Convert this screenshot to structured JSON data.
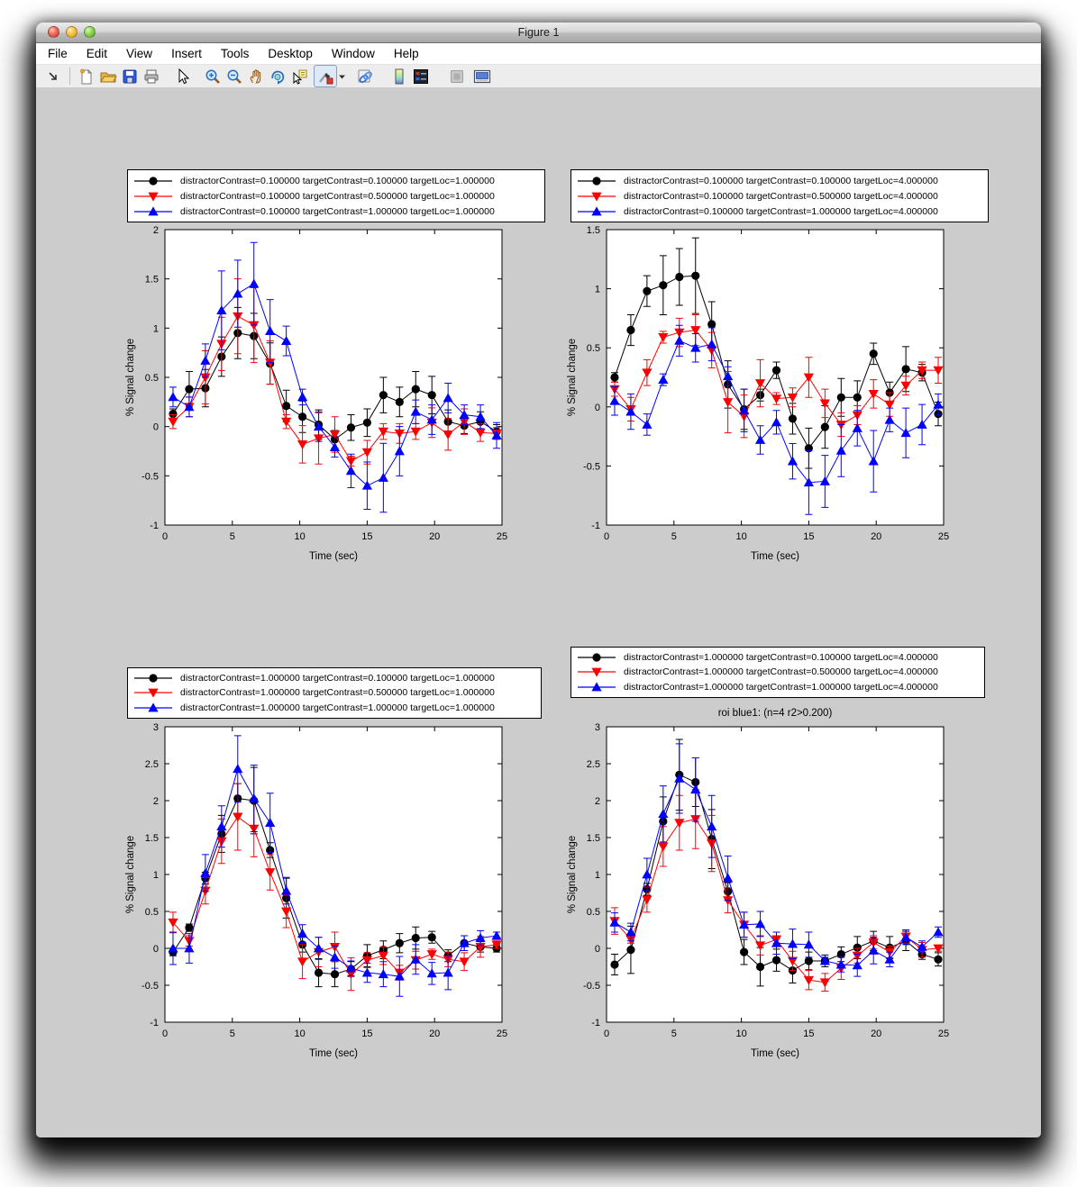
{
  "chrome": {
    "title": "Figure 1",
    "traffic_lights": [
      "close",
      "minimize",
      "zoom"
    ],
    "menu": [
      "File",
      "Edit",
      "View",
      "Insert",
      "Tools",
      "Desktop",
      "Window",
      "Help"
    ],
    "toolbar_icons": [
      "dock-arrow-icon",
      "new-figure-icon",
      "open-file-icon",
      "save-figure-icon",
      "print-icon",
      "edit-plot-pointer-icon",
      "zoom-in-icon",
      "zoom-out-icon",
      "pan-hand-icon",
      "rotate-3d-icon",
      "data-cursor-icon",
      "brush-data-icon",
      "brush-dropdown-icon",
      "link-plot-icon",
      "insert-colorbar-icon",
      "insert-legend-icon",
      "hide-plot-tools-icon",
      "show-plot-tools-icon"
    ]
  },
  "figure": {
    "background_color": "#cccccc",
    "axes_background": "#ffffff",
    "series_colors": [
      "#000000",
      "#ff0000",
      "#0000ff"
    ],
    "series_markers": [
      "circle",
      "triangle-down",
      "triangle-up"
    ]
  },
  "chart_data": [
    {
      "type": "line",
      "title": "",
      "xlabel": "Time (sec)",
      "ylabel": "% Signal change",
      "xlim": [
        0,
        25
      ],
      "ylim": [
        -1,
        2
      ],
      "xticks": [
        0,
        5,
        10,
        15,
        20,
        25
      ],
      "yticks": [
        -1,
        -0.5,
        0,
        0.5,
        1,
        1.5,
        2
      ],
      "legend_position": "above-axes",
      "x": [
        0.6,
        1.8,
        3.0,
        4.2,
        5.4,
        6.6,
        7.8,
        9.0,
        10.2,
        11.4,
        12.6,
        13.8,
        15.0,
        16.2,
        17.4,
        18.6,
        19.8,
        21.0,
        22.2,
        23.4,
        24.6
      ],
      "series": [
        {
          "label": "distractorContrast=0.100000 targetContrast=0.100000 targetLoc=1.000000",
          "color": "#000000",
          "marker": "circle",
          "y": [
            0.13,
            0.38,
            0.39,
            0.71,
            0.95,
            0.92,
            0.64,
            0.21,
            0.1,
            0.02,
            -0.13,
            -0.01,
            0.04,
            0.32,
            0.25,
            0.38,
            0.32,
            0.05,
            0.01,
            0.05,
            -0.05
          ],
          "err": [
            0.05,
            0.18,
            0.19,
            0.2,
            0.26,
            0.23,
            0.21,
            0.16,
            0.16,
            0.15,
            0.09,
            0.13,
            0.14,
            0.18,
            0.15,
            0.18,
            0.19,
            0.12,
            0.08,
            0.1,
            0.07
          ]
        },
        {
          "label": "distractorContrast=0.100000 targetContrast=0.500000 targetLoc=1.000000",
          "color": "#ff0000",
          "marker": "triangle-down",
          "y": [
            0.05,
            0.2,
            0.5,
            0.84,
            1.12,
            1.03,
            0.65,
            0.05,
            -0.18,
            -0.12,
            -0.08,
            -0.35,
            -0.26,
            -0.05,
            -0.07,
            -0.05,
            0.04,
            -0.08,
            0.05,
            -0.06,
            -0.07
          ],
          "err": [
            0.07,
            0.1,
            0.27,
            0.27,
            0.38,
            0.38,
            0.22,
            0.07,
            0.19,
            0.26,
            0.18,
            0.05,
            0.12,
            0.08,
            0.1,
            0.08,
            0.15,
            0.16,
            0.13,
            0.09,
            0.06
          ]
        },
        {
          "label": "distractorContrast=0.100000 targetContrast=1.000000 targetLoc=1.000000",
          "color": "#0000ff",
          "marker": "triangle-up",
          "y": [
            0.3,
            0.2,
            0.67,
            1.18,
            1.35,
            1.45,
            0.97,
            0.87,
            0.3,
            0.0,
            -0.21,
            -0.45,
            -0.6,
            -0.52,
            -0.25,
            0.15,
            0.07,
            0.29,
            0.12,
            0.1,
            -0.09
          ],
          "err": [
            0.1,
            0.1,
            0.17,
            0.4,
            0.34,
            0.42,
            0.32,
            0.15,
            0.08,
            0.15,
            0.1,
            0.17,
            0.24,
            0.35,
            0.25,
            0.12,
            0.15,
            0.15,
            0.1,
            0.12,
            0.13
          ]
        }
      ]
    },
    {
      "type": "line",
      "title": "",
      "xlabel": "Time (sec)",
      "ylabel": "% Signal change",
      "xlim": [
        0,
        25
      ],
      "ylim": [
        -1,
        1.5
      ],
      "xticks": [
        0,
        5,
        10,
        15,
        20,
        25
      ],
      "yticks": [
        -1,
        -0.5,
        0,
        0.5,
        1,
        1.5
      ],
      "legend_position": "above-axes",
      "x": [
        0.6,
        1.8,
        3.0,
        4.2,
        5.4,
        6.6,
        7.8,
        9.0,
        10.2,
        11.4,
        12.6,
        13.8,
        15.0,
        16.2,
        17.4,
        18.6,
        19.8,
        21.0,
        22.2,
        23.4,
        24.6
      ],
      "series": [
        {
          "label": "distractorContrast=0.100000 targetContrast=0.100000 targetLoc=4.000000",
          "color": "#000000",
          "marker": "circle",
          "y": [
            0.25,
            0.65,
            0.98,
            1.03,
            1.1,
            1.11,
            0.7,
            0.19,
            -0.02,
            0.1,
            0.31,
            -0.1,
            -0.35,
            -0.17,
            0.08,
            0.08,
            0.45,
            0.12,
            0.32,
            0.29,
            -0.06
          ],
          "err": [
            0.04,
            0.13,
            0.13,
            0.25,
            0.24,
            0.32,
            0.19,
            0.2,
            0.17,
            0.05,
            0.07,
            0.13,
            0.17,
            0.18,
            0.16,
            0.14,
            0.09,
            0.09,
            0.19,
            0.07,
            0.1
          ]
        },
        {
          "label": "distractorContrast=0.100000 targetContrast=0.500000 targetLoc=4.000000",
          "color": "#ff0000",
          "marker": "triangle-down",
          "y": [
            0.15,
            -0.02,
            0.29,
            0.59,
            0.63,
            0.65,
            0.48,
            0.04,
            -0.08,
            0.2,
            0.07,
            0.08,
            0.25,
            0.03,
            -0.15,
            -0.07,
            0.11,
            0.02,
            0.18,
            0.31,
            0.31
          ],
          "err": [
            0.06,
            0.1,
            0.11,
            0.05,
            0.12,
            0.13,
            0.15,
            0.26,
            0.18,
            0.2,
            0.05,
            0.08,
            0.17,
            0.12,
            0.1,
            0.08,
            0.12,
            0.1,
            0.08,
            0.07,
            0.11
          ]
        },
        {
          "label": "distractorContrast=0.100000 targetContrast=1.000000 targetLoc=4.000000",
          "color": "#0000ff",
          "marker": "triangle-up",
          "y": [
            0.05,
            -0.04,
            -0.15,
            0.23,
            0.56,
            0.5,
            0.53,
            0.26,
            -0.03,
            -0.28,
            -0.13,
            -0.46,
            -0.64,
            -0.63,
            -0.37,
            -0.18,
            -0.46,
            -0.11,
            -0.22,
            -0.15,
            0.02
          ],
          "err": [
            0.12,
            0.15,
            0.09,
            0.05,
            0.13,
            0.12,
            0.14,
            0.08,
            0.18,
            0.12,
            0.1,
            0.15,
            0.27,
            0.22,
            0.22,
            0.15,
            0.26,
            0.1,
            0.21,
            0.17,
            0.09
          ]
        }
      ]
    },
    {
      "type": "line",
      "title": "",
      "xlabel": "Time (sec)",
      "ylabel": "% Signal change",
      "xlim": [
        0,
        25
      ],
      "ylim": [
        -1,
        3
      ],
      "xticks": [
        0,
        5,
        10,
        15,
        20,
        25
      ],
      "yticks": [
        -1,
        -0.5,
        0,
        0.5,
        1,
        1.5,
        2,
        2.5,
        3
      ],
      "legend_position": "above-axes",
      "x": [
        0.6,
        1.8,
        3.0,
        4.2,
        5.4,
        6.6,
        7.8,
        9.0,
        10.2,
        11.4,
        12.6,
        13.8,
        15.0,
        16.2,
        17.4,
        18.6,
        19.8,
        21.0,
        22.2,
        23.4,
        24.6
      ],
      "series": [
        {
          "label": "distractorContrast=1.000000 targetContrast=0.100000 targetLoc=1.000000",
          "color": "#000000",
          "marker": "circle",
          "y": [
            -0.05,
            0.28,
            0.95,
            1.55,
            2.03,
            2.0,
            1.33,
            0.68,
            0.05,
            -0.33,
            -0.35,
            -0.28,
            -0.1,
            -0.02,
            0.07,
            0.14,
            0.15,
            -0.1,
            0.07,
            0.02,
            0.0
          ],
          "err": [
            0.05,
            0.05,
            0.08,
            0.25,
            0.2,
            0.45,
            0.1,
            0.27,
            0.1,
            0.19,
            0.17,
            0.1,
            0.15,
            0.12,
            0.13,
            0.15,
            0.08,
            0.08,
            0.1,
            0.07,
            0.05
          ]
        },
        {
          "label": "distractorContrast=1.000000 targetContrast=0.500000 targetLoc=1.000000",
          "color": "#ff0000",
          "marker": "triangle-down",
          "y": [
            0.35,
            0.1,
            0.78,
            1.45,
            1.78,
            1.62,
            1.03,
            0.5,
            -0.18,
            -0.05,
            0.02,
            -0.35,
            -0.16,
            -0.1,
            -0.33,
            -0.16,
            -0.08,
            -0.15,
            -0.18,
            0.02,
            0.05
          ],
          "err": [
            0.14,
            0.07,
            0.18,
            0.3,
            0.45,
            0.38,
            0.24,
            0.22,
            0.23,
            0.2,
            0.2,
            0.22,
            0.1,
            0.12,
            0.1,
            0.12,
            0.07,
            0.1,
            0.12,
            0.14,
            0.05
          ]
        },
        {
          "label": "distractorContrast=1.000000 targetContrast=1.000000 targetLoc=1.000000",
          "color": "#0000ff",
          "marker": "triangle-up",
          "y": [
            0.0,
            0.0,
            1.02,
            1.65,
            2.43,
            2.03,
            1.7,
            0.78,
            0.2,
            0.0,
            -0.12,
            -0.27,
            -0.33,
            -0.35,
            -0.38,
            -0.15,
            -0.34,
            -0.33,
            0.07,
            0.14,
            0.17
          ],
          "err": [
            0.22,
            0.2,
            0.25,
            0.28,
            0.45,
            0.45,
            0.4,
            0.18,
            0.12,
            0.15,
            0.15,
            0.1,
            0.13,
            0.17,
            0.27,
            0.2,
            0.15,
            0.23,
            0.1,
            0.1,
            0.05
          ]
        }
      ]
    },
    {
      "type": "line",
      "title": "roi blue1: (n=4 r2>0.200)",
      "xlabel": "Time (sec)",
      "ylabel": "% Signal change",
      "xlim": [
        0,
        25
      ],
      "ylim": [
        -1,
        3
      ],
      "xticks": [
        0,
        5,
        10,
        15,
        20,
        25
      ],
      "yticks": [
        -1,
        -0.5,
        0,
        0.5,
        1,
        1.5,
        2,
        2.5,
        3
      ],
      "legend_position": "above-axes",
      "x": [
        0.6,
        1.8,
        3.0,
        4.2,
        5.4,
        6.6,
        7.8,
        9.0,
        10.2,
        11.4,
        12.6,
        13.8,
        15.0,
        16.2,
        17.4,
        18.6,
        19.8,
        21.0,
        22.2,
        23.4,
        24.6
      ],
      "series": [
        {
          "label": "distractorContrast=1.000000 targetContrast=0.100000 targetLoc=4.000000",
          "color": "#000000",
          "marker": "circle",
          "y": [
            -0.22,
            -0.02,
            0.8,
            1.72,
            2.35,
            2.25,
            1.48,
            0.77,
            -0.05,
            -0.25,
            -0.16,
            -0.3,
            -0.17,
            -0.17,
            -0.08,
            0.01,
            0.1,
            0.01,
            0.1,
            -0.08,
            -0.15
          ],
          "err": [
            0.14,
            0.32,
            0.08,
            0.33,
            0.48,
            0.33,
            0.4,
            0.12,
            0.17,
            0.26,
            0.15,
            0.17,
            0.12,
            0.08,
            0.1,
            0.15,
            0.13,
            0.15,
            0.13,
            0.07,
            0.09
          ]
        },
        {
          "label": "distractorContrast=1.000000 targetContrast=0.500000 targetLoc=4.000000",
          "color": "#ff0000",
          "marker": "triangle-down",
          "y": [
            0.37,
            0.12,
            0.66,
            1.38,
            1.7,
            1.75,
            1.42,
            0.65,
            0.32,
            0.04,
            0.12,
            -0.17,
            -0.43,
            -0.46,
            -0.27,
            -0.1,
            0.08,
            -0.05,
            0.16,
            -0.02,
            0.0
          ],
          "err": [
            0.18,
            0.05,
            0.17,
            0.27,
            0.37,
            0.4,
            0.38,
            0.17,
            0.17,
            0.13,
            0.05,
            0.13,
            0.13,
            0.12,
            0.15,
            0.1,
            0.09,
            0.08,
            0.09,
            0.1,
            0.04
          ]
        },
        {
          "label": "distractorContrast=1.000000 targetContrast=1.000000 targetLoc=4.000000",
          "color": "#0000ff",
          "marker": "triangle-up",
          "y": [
            0.35,
            0.22,
            1.0,
            1.82,
            2.3,
            2.15,
            1.65,
            0.95,
            0.32,
            0.33,
            0.07,
            0.06,
            0.05,
            -0.17,
            -0.22,
            -0.23,
            -0.03,
            -0.15,
            0.15,
            0.02,
            0.22
          ],
          "err": [
            0.13,
            0.12,
            0.22,
            0.38,
            0.47,
            0.43,
            0.42,
            0.3,
            0.17,
            0.17,
            0.15,
            0.2,
            0.17,
            0.05,
            0.1,
            0.15,
            0.18,
            0.1,
            0.1,
            0.08,
            0.07
          ]
        }
      ]
    }
  ]
}
